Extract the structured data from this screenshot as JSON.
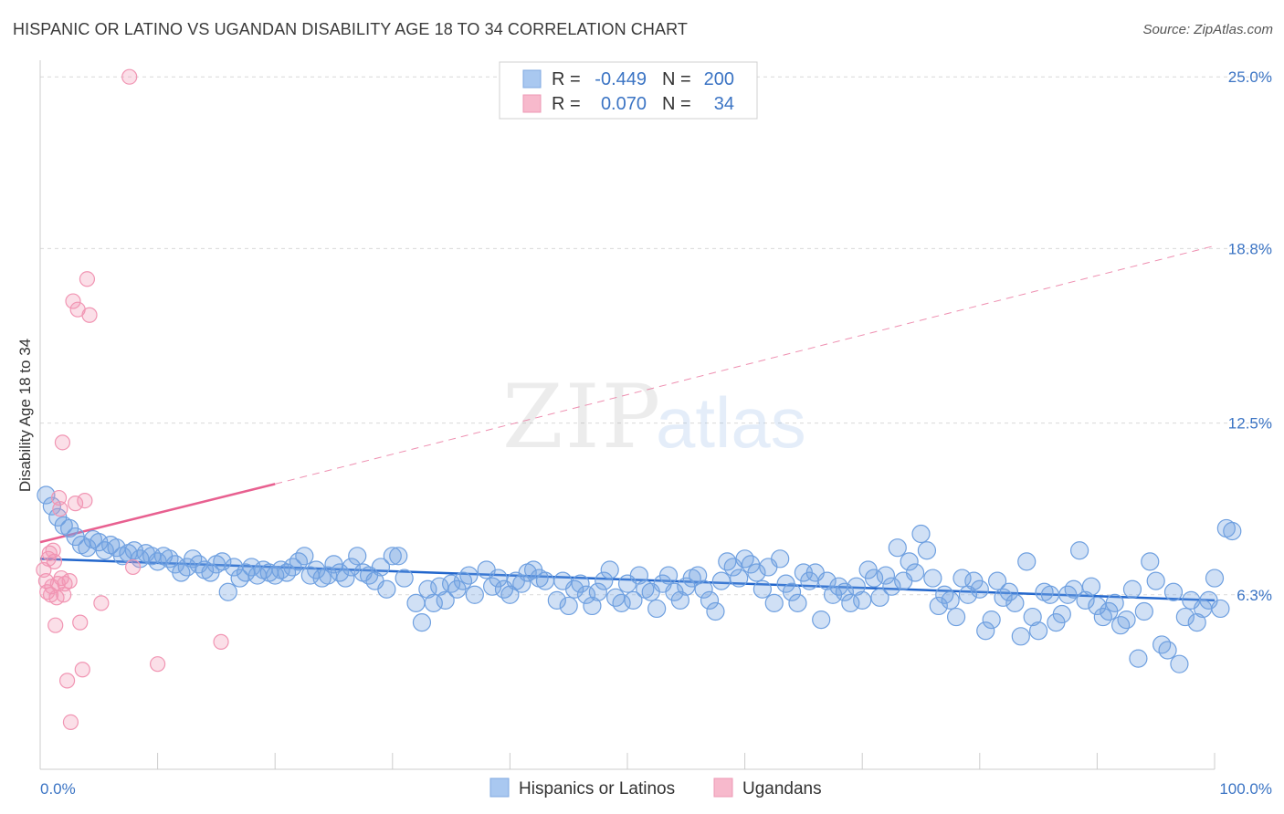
{
  "title": "HISPANIC OR LATINO VS UGANDAN DISABILITY AGE 18 TO 34 CORRELATION CHART",
  "source": "Source: ZipAtlas.com",
  "watermark": {
    "zip": "ZIP",
    "atlas": "atlas"
  },
  "legend": [
    {
      "r_label": "R =",
      "r_value": "-0.449",
      "n_label": "N =",
      "n_value": "200",
      "color": "#a9c8f0"
    },
    {
      "r_label": "R =",
      "r_value": "0.070",
      "n_label": "N =",
      "n_value": "34",
      "color": "#f7b9cc"
    }
  ],
  "bottom_legend": [
    "Hispanics or Latinos",
    "Ugandans"
  ],
  "chart_data": {
    "type": "scatter",
    "title": "HISPANIC OR LATINO VS UGANDAN DISABILITY AGE 18 TO 34 CORRELATION CHART",
    "xlabel": "",
    "ylabel": "Disability Age 18 to 34",
    "xlim": [
      0,
      100
    ],
    "ylim": [
      0,
      25.6
    ],
    "x_tick_labels": [
      "0.0%",
      "100.0%"
    ],
    "y_ticks": [
      6.3,
      12.5,
      18.8,
      25.0
    ],
    "y_tick_labels": [
      "6.3%",
      "12.5%",
      "18.8%",
      "25.0%"
    ],
    "grid": true,
    "legend_position": "top-center",
    "colors": {
      "hispanic": "#6fa0e0",
      "ugandan": "#f195b3",
      "hispanic_line": "#2266cc",
      "ugandan_line": "#e86090"
    },
    "series": [
      {
        "name": "Hispanics or Latinos",
        "r": -0.449,
        "n": 200,
        "trend": {
          "x": [
            0,
            100
          ],
          "y": [
            7.6,
            6.1
          ]
        },
        "points": [
          [
            0.5,
            9.9
          ],
          [
            1,
            9.5
          ],
          [
            1.5,
            9.1
          ],
          [
            2,
            8.8
          ],
          [
            2.5,
            8.7
          ],
          [
            3,
            8.4
          ],
          [
            3.5,
            8.1
          ],
          [
            4,
            8.0
          ],
          [
            4.5,
            8.3
          ],
          [
            5,
            8.2
          ],
          [
            5.5,
            7.9
          ],
          [
            6,
            8.1
          ],
          [
            6.5,
            8.0
          ],
          [
            7,
            7.7
          ],
          [
            7.5,
            7.8
          ],
          [
            8,
            7.9
          ],
          [
            8.5,
            7.6
          ],
          [
            9,
            7.8
          ],
          [
            9.5,
            7.7
          ],
          [
            10,
            7.5
          ],
          [
            10.5,
            7.7
          ],
          [
            11,
            7.6
          ],
          [
            11.5,
            7.4
          ],
          [
            12,
            7.1
          ],
          [
            12.5,
            7.3
          ],
          [
            13,
            7.6
          ],
          [
            13.5,
            7.4
          ],
          [
            14,
            7.2
          ],
          [
            14.5,
            7.1
          ],
          [
            15,
            7.4
          ],
          [
            15.5,
            7.5
          ],
          [
            16,
            6.4
          ],
          [
            16.5,
            7.3
          ],
          [
            17,
            6.9
          ],
          [
            17.5,
            7.1
          ],
          [
            18,
            7.3
          ],
          [
            18.5,
            7.0
          ],
          [
            19,
            7.2
          ],
          [
            19.5,
            7.1
          ],
          [
            20,
            7.0
          ],
          [
            20.5,
            7.2
          ],
          [
            21,
            7.1
          ],
          [
            21.5,
            7.3
          ],
          [
            22,
            7.5
          ],
          [
            22.5,
            7.7
          ],
          [
            23,
            7.0
          ],
          [
            23.5,
            7.2
          ],
          [
            24,
            6.9
          ],
          [
            24.5,
            7.0
          ],
          [
            25,
            7.4
          ],
          [
            25.5,
            7.1
          ],
          [
            26,
            6.9
          ],
          [
            26.5,
            7.3
          ],
          [
            27,
            7.7
          ],
          [
            27.5,
            7.1
          ],
          [
            28,
            7.0
          ],
          [
            28.5,
            6.8
          ],
          [
            29,
            7.3
          ],
          [
            29.5,
            6.5
          ],
          [
            30,
            7.7
          ],
          [
            30.5,
            7.7
          ],
          [
            31,
            6.9
          ],
          [
            32,
            6.0
          ],
          [
            32.5,
            5.3
          ],
          [
            33,
            6.5
          ],
          [
            33.5,
            6.0
          ],
          [
            34,
            6.6
          ],
          [
            34.5,
            6.1
          ],
          [
            35,
            6.7
          ],
          [
            35.5,
            6.5
          ],
          [
            36,
            6.8
          ],
          [
            36.5,
            7.0
          ],
          [
            37,
            6.3
          ],
          [
            38,
            7.2
          ],
          [
            38.5,
            6.6
          ],
          [
            39,
            6.9
          ],
          [
            39.5,
            6.5
          ],
          [
            40,
            6.3
          ],
          [
            40.5,
            6.8
          ],
          [
            41,
            6.7
          ],
          [
            41.5,
            7.1
          ],
          [
            42,
            7.2
          ],
          [
            42.5,
            6.9
          ],
          [
            43,
            6.8
          ],
          [
            44,
            6.1
          ],
          [
            44.5,
            6.8
          ],
          [
            45,
            5.9
          ],
          [
            45.5,
            6.5
          ],
          [
            46,
            6.7
          ],
          [
            46.5,
            6.3
          ],
          [
            47,
            5.9
          ],
          [
            47.5,
            6.4
          ],
          [
            48,
            6.8
          ],
          [
            48.5,
            7.2
          ],
          [
            49,
            6.2
          ],
          [
            49.5,
            6.0
          ],
          [
            50,
            6.7
          ],
          [
            50.5,
            6.1
          ],
          [
            51,
            7.0
          ],
          [
            51.5,
            6.5
          ],
          [
            52,
            6.4
          ],
          [
            52.5,
            5.8
          ],
          [
            53,
            6.7
          ],
          [
            53.5,
            7.0
          ],
          [
            54,
            6.4
          ],
          [
            54.5,
            6.1
          ],
          [
            55,
            6.6
          ],
          [
            55.5,
            6.9
          ],
          [
            56,
            7.0
          ],
          [
            56.5,
            6.5
          ],
          [
            57,
            6.1
          ],
          [
            57.5,
            5.7
          ],
          [
            58,
            6.8
          ],
          [
            58.5,
            7.5
          ],
          [
            59,
            7.3
          ],
          [
            59.5,
            6.9
          ],
          [
            60,
            7.6
          ],
          [
            60.5,
            7.4
          ],
          [
            61,
            7.1
          ],
          [
            61.5,
            6.5
          ],
          [
            62,
            7.3
          ],
          [
            62.5,
            6.0
          ],
          [
            63,
            7.6
          ],
          [
            63.5,
            6.7
          ],
          [
            64,
            6.4
          ],
          [
            64.5,
            6.0
          ],
          [
            65,
            7.1
          ],
          [
            65.5,
            6.8
          ],
          [
            66,
            7.1
          ],
          [
            66.5,
            5.4
          ],
          [
            67,
            6.8
          ],
          [
            67.5,
            6.3
          ],
          [
            68,
            6.6
          ],
          [
            68.5,
            6.4
          ],
          [
            69,
            6.0
          ],
          [
            69.5,
            6.6
          ],
          [
            70,
            6.1
          ],
          [
            70.5,
            7.2
          ],
          [
            71,
            6.9
          ],
          [
            71.5,
            6.2
          ],
          [
            72,
            7.0
          ],
          [
            72.5,
            6.6
          ],
          [
            73,
            8.0
          ],
          [
            73.5,
            6.8
          ],
          [
            74,
            7.5
          ],
          [
            74.5,
            7.1
          ],
          [
            75,
            8.5
          ],
          [
            75.5,
            7.9
          ],
          [
            76,
            6.9
          ],
          [
            76.5,
            5.9
          ],
          [
            77,
            6.3
          ],
          [
            77.5,
            6.1
          ],
          [
            78,
            5.5
          ],
          [
            78.5,
            6.9
          ],
          [
            79,
            6.3
          ],
          [
            79.5,
            6.8
          ],
          [
            80,
            6.5
          ],
          [
            80.5,
            5.0
          ],
          [
            81,
            5.4
          ],
          [
            81.5,
            6.8
          ],
          [
            82,
            6.2
          ],
          [
            82.5,
            6.4
          ],
          [
            83,
            6.0
          ],
          [
            83.5,
            4.8
          ],
          [
            84,
            7.5
          ],
          [
            84.5,
            5.5
          ],
          [
            85,
            5.0
          ],
          [
            85.5,
            6.4
          ],
          [
            86,
            6.3
          ],
          [
            86.5,
            5.3
          ],
          [
            87,
            5.6
          ],
          [
            87.5,
            6.3
          ],
          [
            88,
            6.5
          ],
          [
            88.5,
            7.9
          ],
          [
            89,
            6.1
          ],
          [
            89.5,
            6.6
          ],
          [
            90,
            5.9
          ],
          [
            90.5,
            5.5
          ],
          [
            91,
            5.7
          ],
          [
            91.5,
            6.0
          ],
          [
            92,
            5.2
          ],
          [
            92.5,
            5.4
          ],
          [
            93,
            6.5
          ],
          [
            93.5,
            4.0
          ],
          [
            94,
            5.7
          ],
          [
            94.5,
            7.5
          ],
          [
            95,
            6.8
          ],
          [
            95.5,
            4.5
          ],
          [
            96,
            4.3
          ],
          [
            96.5,
            6.4
          ],
          [
            97,
            3.8
          ],
          [
            97.5,
            5.5
          ],
          [
            98,
            6.1
          ],
          [
            98.5,
            5.3
          ],
          [
            99,
            5.8
          ],
          [
            99.5,
            6.1
          ],
          [
            100,
            6.9
          ],
          [
            100.5,
            5.8
          ],
          [
            101,
            8.7
          ],
          [
            101.5,
            8.6
          ]
        ]
      },
      {
        "name": "Ugandans",
        "r": 0.07,
        "n": 34,
        "trend": {
          "x": [
            0,
            20
          ],
          "y": [
            8.2,
            10.3
          ]
        },
        "trend_extended": {
          "x": [
            20,
            100
          ],
          "y": [
            10.3,
            18.9
          ]
        },
        "points": [
          [
            0.3,
            7.2
          ],
          [
            0.5,
            6.8
          ],
          [
            0.6,
            6.4
          ],
          [
            0.7,
            7.6
          ],
          [
            0.8,
            7.8
          ],
          [
            0.9,
            6.3
          ],
          [
            1.0,
            6.6
          ],
          [
            1.1,
            7.9
          ],
          [
            1.2,
            7.5
          ],
          [
            1.3,
            5.2
          ],
          [
            1.4,
            6.2
          ],
          [
            1.5,
            6.7
          ],
          [
            1.6,
            9.8
          ],
          [
            1.7,
            9.4
          ],
          [
            1.8,
            6.9
          ],
          [
            1.9,
            11.8
          ],
          [
            2.0,
            6.3
          ],
          [
            2.1,
            6.7
          ],
          [
            2.3,
            3.2
          ],
          [
            2.5,
            6.8
          ],
          [
            2.6,
            1.7
          ],
          [
            2.8,
            16.9
          ],
          [
            3.0,
            9.6
          ],
          [
            3.2,
            16.6
          ],
          [
            3.4,
            5.3
          ],
          [
            3.6,
            3.6
          ],
          [
            3.8,
            9.7
          ],
          [
            4.0,
            17.7
          ],
          [
            4.2,
            16.4
          ],
          [
            5.2,
            6.0
          ],
          [
            7.6,
            25.0
          ],
          [
            7.9,
            7.3
          ],
          [
            10.0,
            3.8
          ],
          [
            15.4,
            4.6
          ]
        ]
      }
    ]
  }
}
